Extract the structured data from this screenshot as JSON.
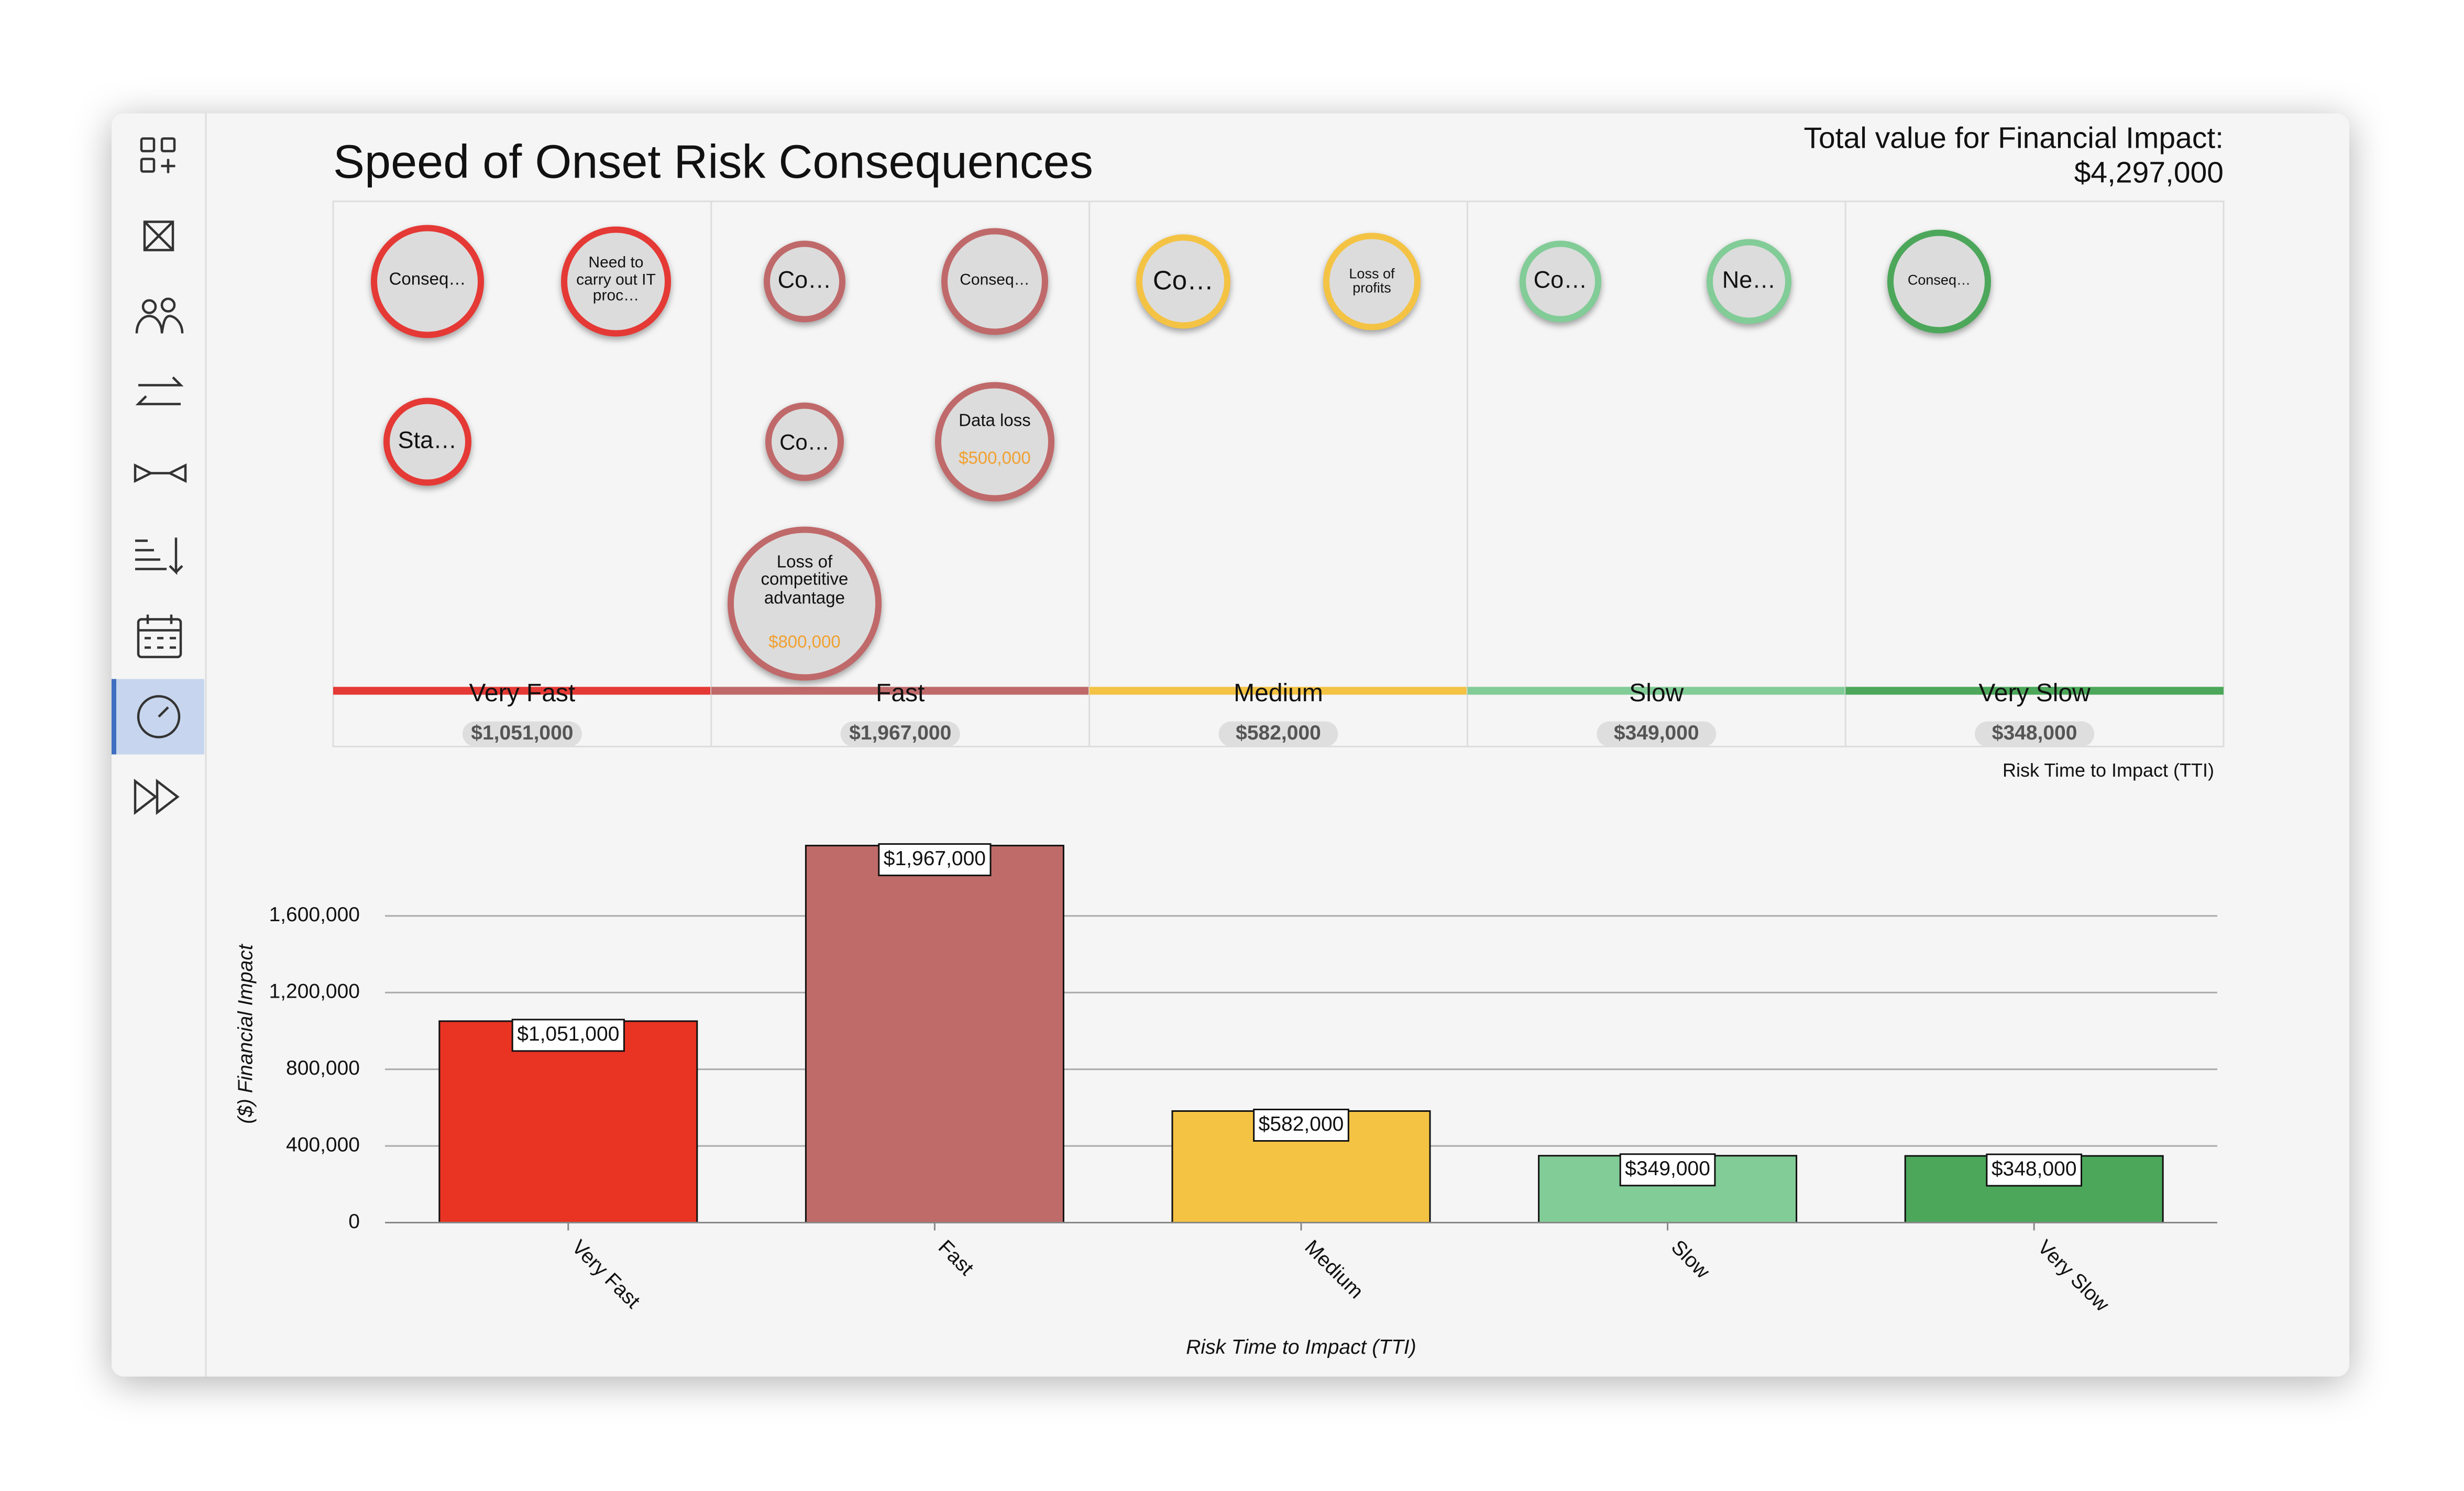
{
  "title": "Speed of Onset Risk Consequences",
  "total_label": "Total value for Financial Impact:",
  "total_value": "$4,297,000",
  "tti_label": "Risk Time to Impact (TTI)",
  "risk_columns": [
    {
      "name": "Very Fast",
      "total": "$1,051,000",
      "color": "#e53935",
      "bubbles": [
        {
          "label": "Conseq…"
        },
        {
          "label": "Need to carry out IT proc…"
        },
        {
          "label": "Sta…"
        }
      ]
    },
    {
      "name": "Fast",
      "total": "$1,967,000",
      "color": "#c0696a",
      "bubbles": [
        {
          "label": "Co…"
        },
        {
          "label": "Conseq…"
        },
        {
          "label": "Co…"
        },
        {
          "label": "Data loss",
          "value": "$500,000"
        },
        {
          "label": "Loss of competitive advantage",
          "value": "$800,000"
        }
      ]
    },
    {
      "name": "Medium",
      "total": "$582,000",
      "color": "#f4c344",
      "bubbles": [
        {
          "label": "Co…"
        },
        {
          "label": "Loss of profits"
        }
      ]
    },
    {
      "name": "Slow",
      "total": "$349,000",
      "color": "#82cc97",
      "bubbles": [
        {
          "label": "Co…"
        },
        {
          "label": "Ne…"
        }
      ]
    },
    {
      "name": "Very Slow",
      "total": "$348,000",
      "color": "#4ca75a",
      "bubbles": [
        {
          "label": "Conseq…"
        }
      ]
    }
  ],
  "chart_data": {
    "type": "bar",
    "categories": [
      "Very Fast",
      "Fast",
      "Medium",
      "Slow",
      "Very Slow"
    ],
    "values": [
      1051000,
      1967000,
      582000,
      349000,
      348000
    ],
    "value_labels": [
      "$1,051,000",
      "$1,967,000",
      "$582,000",
      "$349,000",
      "$348,000"
    ],
    "colors": [
      "#e93323",
      "#bf6b69",
      "#f4c344",
      "#82cc97",
      "#4ca75a"
    ],
    "ylim": [
      0,
      2000000
    ],
    "yticks": [
      0,
      {
        "value": 400000,
        "label": "400,000"
      },
      {
        "value": 800000,
        "label": "800,000"
      },
      {
        "value": 1200000,
        "label": "1,200,000"
      },
      {
        "value": 1600000,
        "label": "1,600,000"
      }
    ],
    "xlabel": "Risk Time to Impact (TTI)",
    "ylabel": "($) Financial Impact",
    "grid": true
  }
}
